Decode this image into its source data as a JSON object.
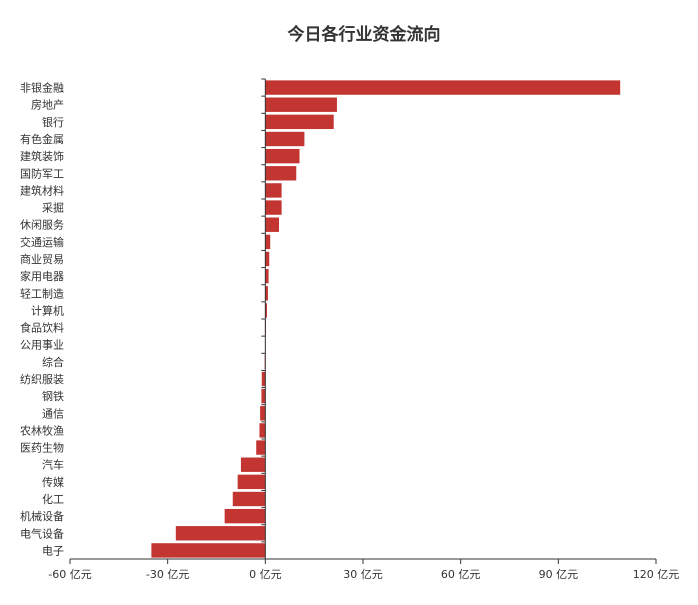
{
  "chart_data": {
    "type": "bar",
    "orientation": "horizontal",
    "title": "今日各行业资金流向",
    "categories": [
      "非银金融",
      "房地产",
      "银行",
      "有色金属",
      "建筑装饰",
      "国防军工",
      "建筑材料",
      "采掘",
      "休闲服务",
      "交通运输",
      "商业贸易",
      "家用电器",
      "轻工制造",
      "计算机",
      "食品饮料",
      "公用事业",
      "综合",
      "纺织服装",
      "钢铁",
      "通信",
      "农林牧渔",
      "医药生物",
      "汽车",
      "传媒",
      "化工",
      "机械设备",
      "电气设备",
      "电子"
    ],
    "values": [
      109,
      22,
      21,
      12,
      10.5,
      9.5,
      5,
      5,
      4.2,
      1.5,
      1.2,
      1,
      0.8,
      0.5,
      0.2,
      -0.1,
      -0.2,
      -1.1,
      -1.2,
      -1.6,
      -1.8,
      -2.8,
      -7.5,
      -8.5,
      -10,
      -12.5,
      -27.5,
      -35
    ],
    "xlim": [
      -60,
      120
    ],
    "x_ticks": [
      -60,
      -30,
      0,
      30,
      60,
      90,
      120
    ],
    "unit": "亿元",
    "grid": false,
    "bar_color": "#c23531"
  }
}
